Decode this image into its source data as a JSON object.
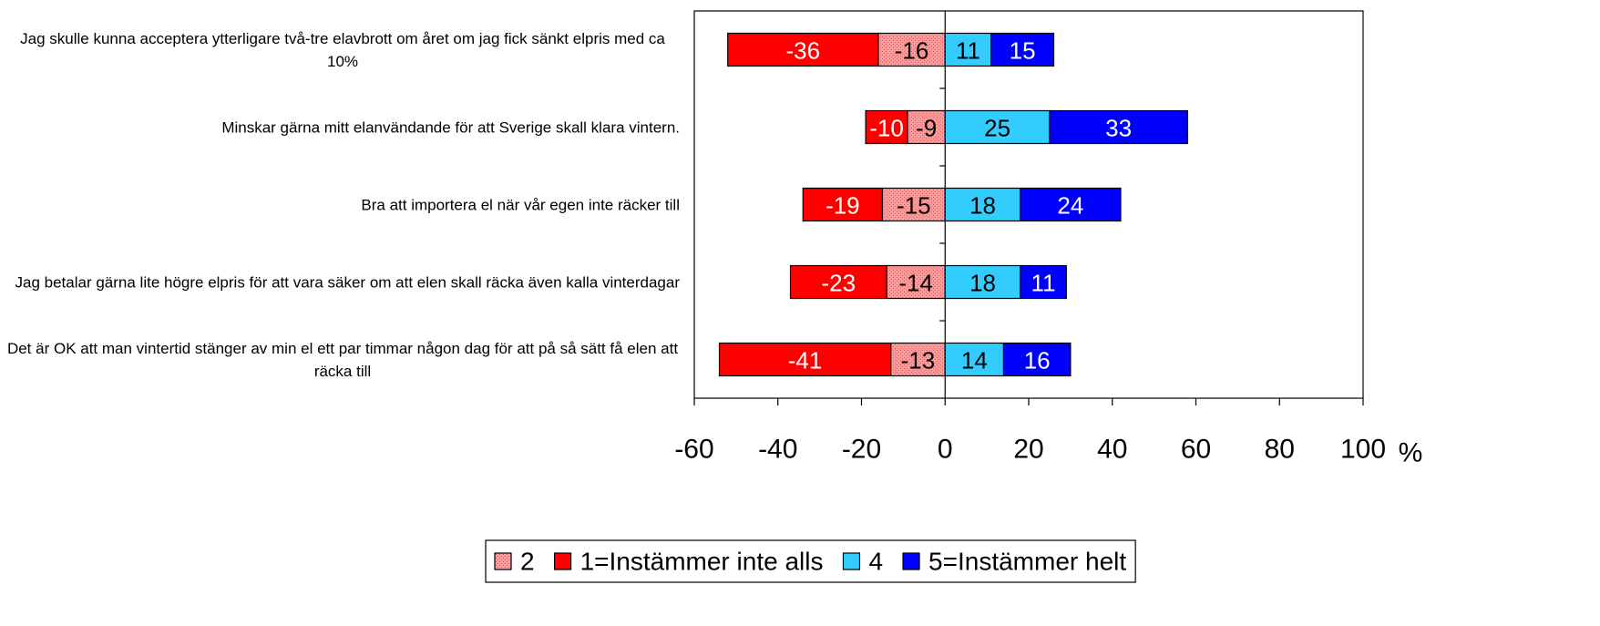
{
  "chart_data": {
    "type": "diverging_stacked_bar",
    "categories": [
      "Jag skulle kunna acceptera ytterligare två-tre elavbrott om året om jag fick sänkt elpris med ca 10%",
      "Minskar gärna mitt elanvändande för att Sverige skall klara vintern.",
      "Bra att importera el när vår egen inte räcker till",
      "Jag betalar gärna lite högre elpris för att vara säker om att elen skall räcka även kalla vinterdagar",
      "Det är OK att man vintertid stänger av min el ett par timmar någon dag för att på så sätt få elen att räcka till"
    ],
    "series": [
      {
        "name": "2",
        "color": "#ff9999",
        "values": [
          -16,
          -9,
          -15,
          -14,
          -13
        ]
      },
      {
        "name": "1=Instämmer inte alls",
        "color": "#ff0000",
        "values": [
          -36,
          -10,
          -19,
          -23,
          -41
        ]
      },
      {
        "name": "4",
        "color": "#33ccff",
        "values": [
          11,
          25,
          18,
          18,
          14
        ]
      },
      {
        "name": "5=Instämmer helt",
        "color": "#0000ff",
        "values": [
          15,
          33,
          24,
          11,
          16
        ]
      }
    ],
    "xlim": [
      -60,
      100
    ],
    "xticks": [
      -60,
      -40,
      -20,
      0,
      20,
      40,
      60,
      80,
      100
    ],
    "xlabel": "%",
    "legend": "bottom"
  }
}
